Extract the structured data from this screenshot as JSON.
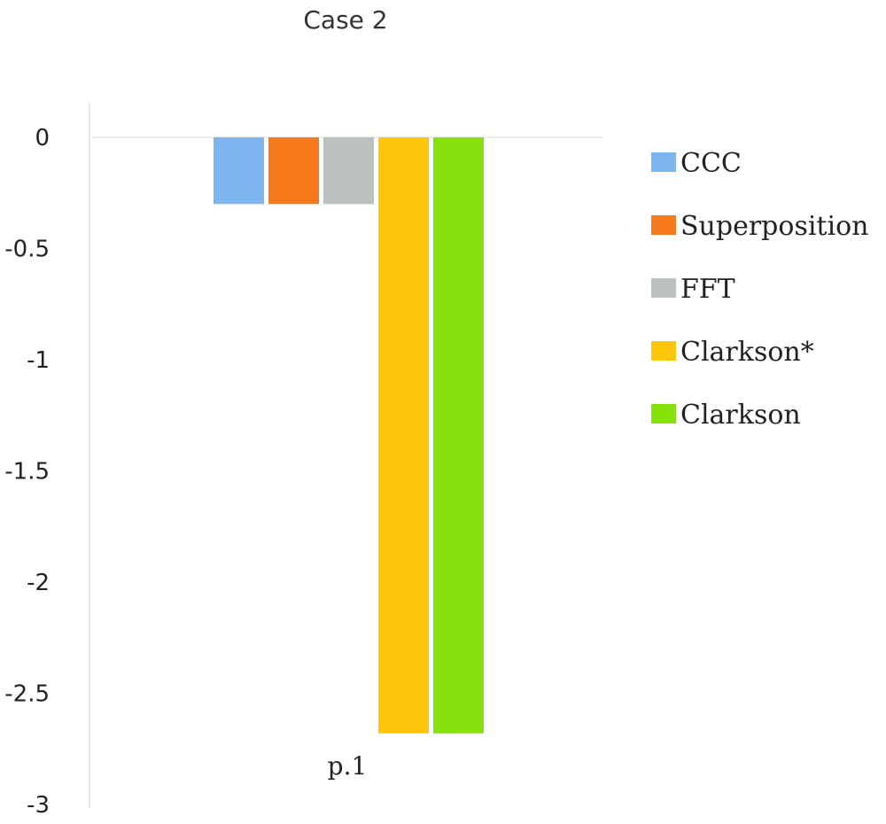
{
  "chart_data": {
    "type": "bar",
    "title": "Case 2",
    "xlabel": "",
    "ylabel": "",
    "categories": [
      "p.1"
    ],
    "series": [
      {
        "name": "CCC",
        "color": "#7cb5f0",
        "values": [
          -0.3
        ]
      },
      {
        "name": "Superposition",
        "color": "#f77a1d",
        "values": [
          -0.3
        ]
      },
      {
        "name": "FFT",
        "color": "#bcc1c0",
        "values": [
          -0.3
        ]
      },
      {
        "name": "Clarkson*",
        "color": "#fdc60b",
        "values": [
          -2.68
        ]
      },
      {
        "name": "Clarkson",
        "color": "#86e10d",
        "values": [
          -2.68
        ]
      }
    ],
    "ylim": [
      -3,
      0
    ],
    "yticks": [
      "0",
      "-0.5",
      "-1",
      "-1.5",
      "-2",
      "-2.5",
      "-3"
    ],
    "ytick_values": [
      0,
      -0.5,
      -1,
      -1.5,
      -2,
      -2.5,
      -3
    ],
    "grid": false,
    "legend_position": "right"
  }
}
